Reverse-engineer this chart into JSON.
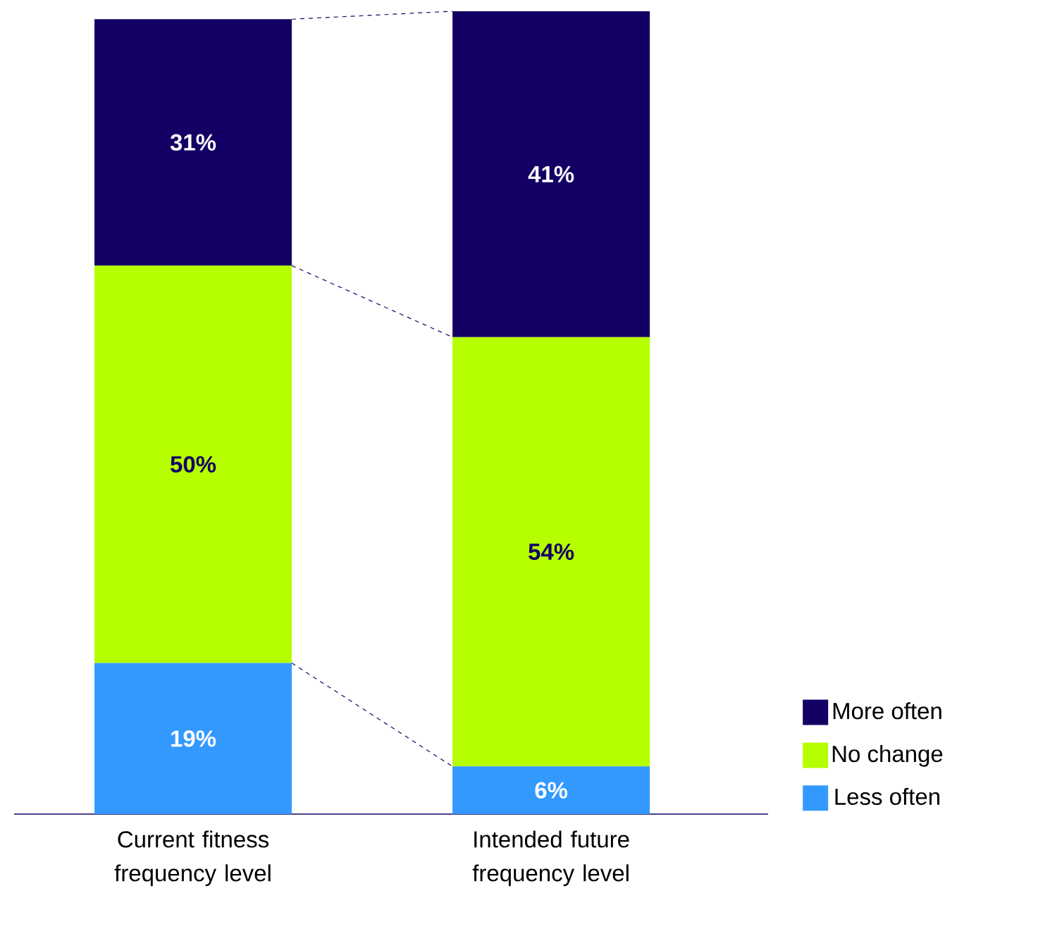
{
  "chart_data": {
    "type": "bar",
    "stacked": true,
    "categories": [
      "Current fitness frequency level",
      "Intended future frequency level"
    ],
    "series": [
      {
        "name": "Less often",
        "color": "#3399ff",
        "values": [
          19,
          6
        ],
        "value_labels": [
          "19%",
          "6%"
        ]
      },
      {
        "name": "No change",
        "color": "#b5ff00",
        "values": [
          50,
          54
        ],
        "value_labels": [
          "50%",
          "54%"
        ]
      },
      {
        "name": "More often",
        "color": "#140064",
        "values": [
          31,
          41
        ],
        "value_labels": [
          "31%",
          "41%"
        ]
      }
    ],
    "legend": "bottom right"
  }
}
